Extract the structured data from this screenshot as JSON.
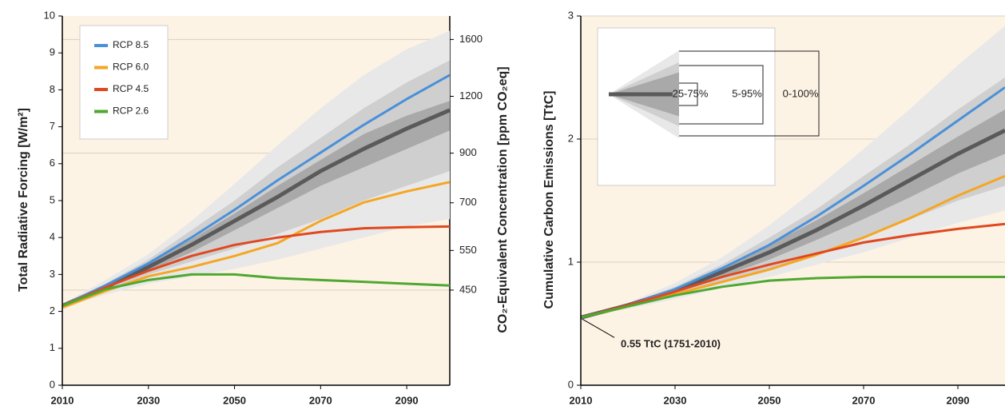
{
  "chart_data": [
    {
      "type": "line",
      "ylabel": "Total Radiative Forcing [W/m²]",
      "y2label": "CO₂-Equivalent Concentration [ppm CO₂eq]",
      "x": [
        2010,
        2020,
        2030,
        2040,
        2050,
        2060,
        2070,
        2080,
        2090,
        2100
      ],
      "xlim": [
        2010,
        2100
      ],
      "xticks": [
        2010,
        2030,
        2050,
        2070,
        2090
      ],
      "ylim": [
        0,
        10
      ],
      "yticks": [
        0,
        1,
        2,
        3,
        4,
        5,
        6,
        7,
        8,
        9,
        10
      ],
      "y2lim": [
        278,
        1802
      ],
      "y2log": true,
      "y2ticks": [
        450,
        550,
        700,
        900,
        1200,
        1600
      ],
      "y2grid": [
        450,
        900,
        1600
      ],
      "bands": [
        {
          "color": "#e8e8e8",
          "low": [
            2.1,
            2.45,
            2.75,
            2.95,
            3.15,
            3.4,
            3.7,
            4.0,
            4.3,
            4.5
          ],
          "high": [
            2.2,
            2.85,
            3.55,
            4.45,
            5.45,
            6.5,
            7.5,
            8.4,
            9.1,
            9.6
          ]
        },
        {
          "color": "#cfcfcf",
          "low": [
            2.1,
            2.55,
            3.0,
            3.35,
            3.7,
            4.1,
            4.5,
            5.0,
            5.4,
            5.8
          ],
          "high": [
            2.2,
            2.75,
            3.4,
            4.2,
            5.0,
            5.9,
            6.7,
            7.5,
            8.2,
            8.8
          ]
        },
        {
          "color": "#a9a9a9",
          "low": [
            2.15,
            2.6,
            3.1,
            3.6,
            4.2,
            4.8,
            5.4,
            5.9,
            6.4,
            6.9
          ],
          "high": [
            2.15,
            2.7,
            3.3,
            3.95,
            4.65,
            5.4,
            6.1,
            6.8,
            7.3,
            7.7
          ]
        }
      ],
      "median": {
        "color": "#5a5a5a",
        "values": [
          2.15,
          2.65,
          3.2,
          3.8,
          4.45,
          5.1,
          5.8,
          6.4,
          6.95,
          7.45
        ]
      },
      "series": [
        {
          "name": "RCP 8.5",
          "color": "#4a90d9",
          "values": [
            2.15,
            2.7,
            3.3,
            4.0,
            4.75,
            5.55,
            6.3,
            7.05,
            7.75,
            8.4
          ]
        },
        {
          "name": "RCP 6.0",
          "color": "#f5a623",
          "values": [
            2.1,
            2.55,
            2.95,
            3.2,
            3.5,
            3.85,
            4.45,
            4.95,
            5.25,
            5.5
          ]
        },
        {
          "name": "RCP 4.5",
          "color": "#e0481f",
          "values": [
            2.15,
            2.65,
            3.1,
            3.5,
            3.8,
            4.0,
            4.15,
            4.25,
            4.28,
            4.3
          ]
        },
        {
          "name": "RCP 2.6",
          "color": "#4fa830",
          "values": [
            2.15,
            2.6,
            2.85,
            3.0,
            3.0,
            2.9,
            2.85,
            2.8,
            2.75,
            2.7
          ]
        }
      ]
    },
    {
      "type": "line",
      "ylabel": "Cumulative Carbon Emissions [TtC]",
      "x": [
        2010,
        2020,
        2030,
        2040,
        2050,
        2060,
        2070,
        2080,
        2090,
        2100
      ],
      "xlim": [
        2010,
        2100
      ],
      "xticks": [
        2010,
        2030,
        2050,
        2070,
        2090
      ],
      "ylim": [
        0,
        3
      ],
      "yticks": [
        0,
        1,
        2,
        3
      ],
      "grid": true,
      "annotation": "0.55 TtC (1751-2010)",
      "bands": [
        {
          "name": "0-100%",
          "color": "#e8e8e8",
          "low": [
            0.55,
            0.62,
            0.7,
            0.79,
            0.88,
            0.98,
            1.08,
            1.2,
            1.32,
            1.42
          ],
          "high": [
            0.55,
            0.67,
            0.83,
            1.04,
            1.3,
            1.6,
            1.92,
            2.25,
            2.6,
            2.92
          ]
        },
        {
          "name": "5-95%",
          "color": "#cfcfcf",
          "low": [
            0.55,
            0.63,
            0.73,
            0.83,
            0.94,
            1.07,
            1.2,
            1.35,
            1.5,
            1.62
          ],
          "high": [
            0.55,
            0.66,
            0.8,
            0.98,
            1.2,
            1.43,
            1.7,
            1.96,
            2.24,
            2.5
          ]
        },
        {
          "name": "25-75%",
          "color": "#a9a9a9",
          "low": [
            0.55,
            0.64,
            0.75,
            0.88,
            1.02,
            1.18,
            1.35,
            1.53,
            1.72,
            1.88
          ],
          "high": [
            0.55,
            0.66,
            0.79,
            0.96,
            1.14,
            1.34,
            1.56,
            1.79,
            2.02,
            2.24
          ]
        }
      ],
      "median": {
        "color": "#5a5a5a",
        "values": [
          0.55,
          0.65,
          0.77,
          0.92,
          1.08,
          1.26,
          1.46,
          1.67,
          1.88,
          2.07
        ]
      },
      "series": [
        {
          "color": "#4a90d9",
          "values": [
            0.55,
            0.65,
            0.78,
            0.95,
            1.14,
            1.37,
            1.62,
            1.88,
            2.15,
            2.42
          ]
        },
        {
          "color": "#f5a623",
          "values": [
            0.55,
            0.64,
            0.74,
            0.84,
            0.94,
            1.06,
            1.2,
            1.36,
            1.54,
            1.7
          ]
        },
        {
          "color": "#e0481f",
          "values": [
            0.55,
            0.65,
            0.76,
            0.88,
            0.98,
            1.07,
            1.16,
            1.22,
            1.27,
            1.31
          ]
        },
        {
          "color": "#4fa830",
          "values": [
            0.55,
            0.64,
            0.73,
            0.8,
            0.85,
            0.87,
            0.88,
            0.88,
            0.88,
            0.88
          ]
        }
      ]
    }
  ]
}
